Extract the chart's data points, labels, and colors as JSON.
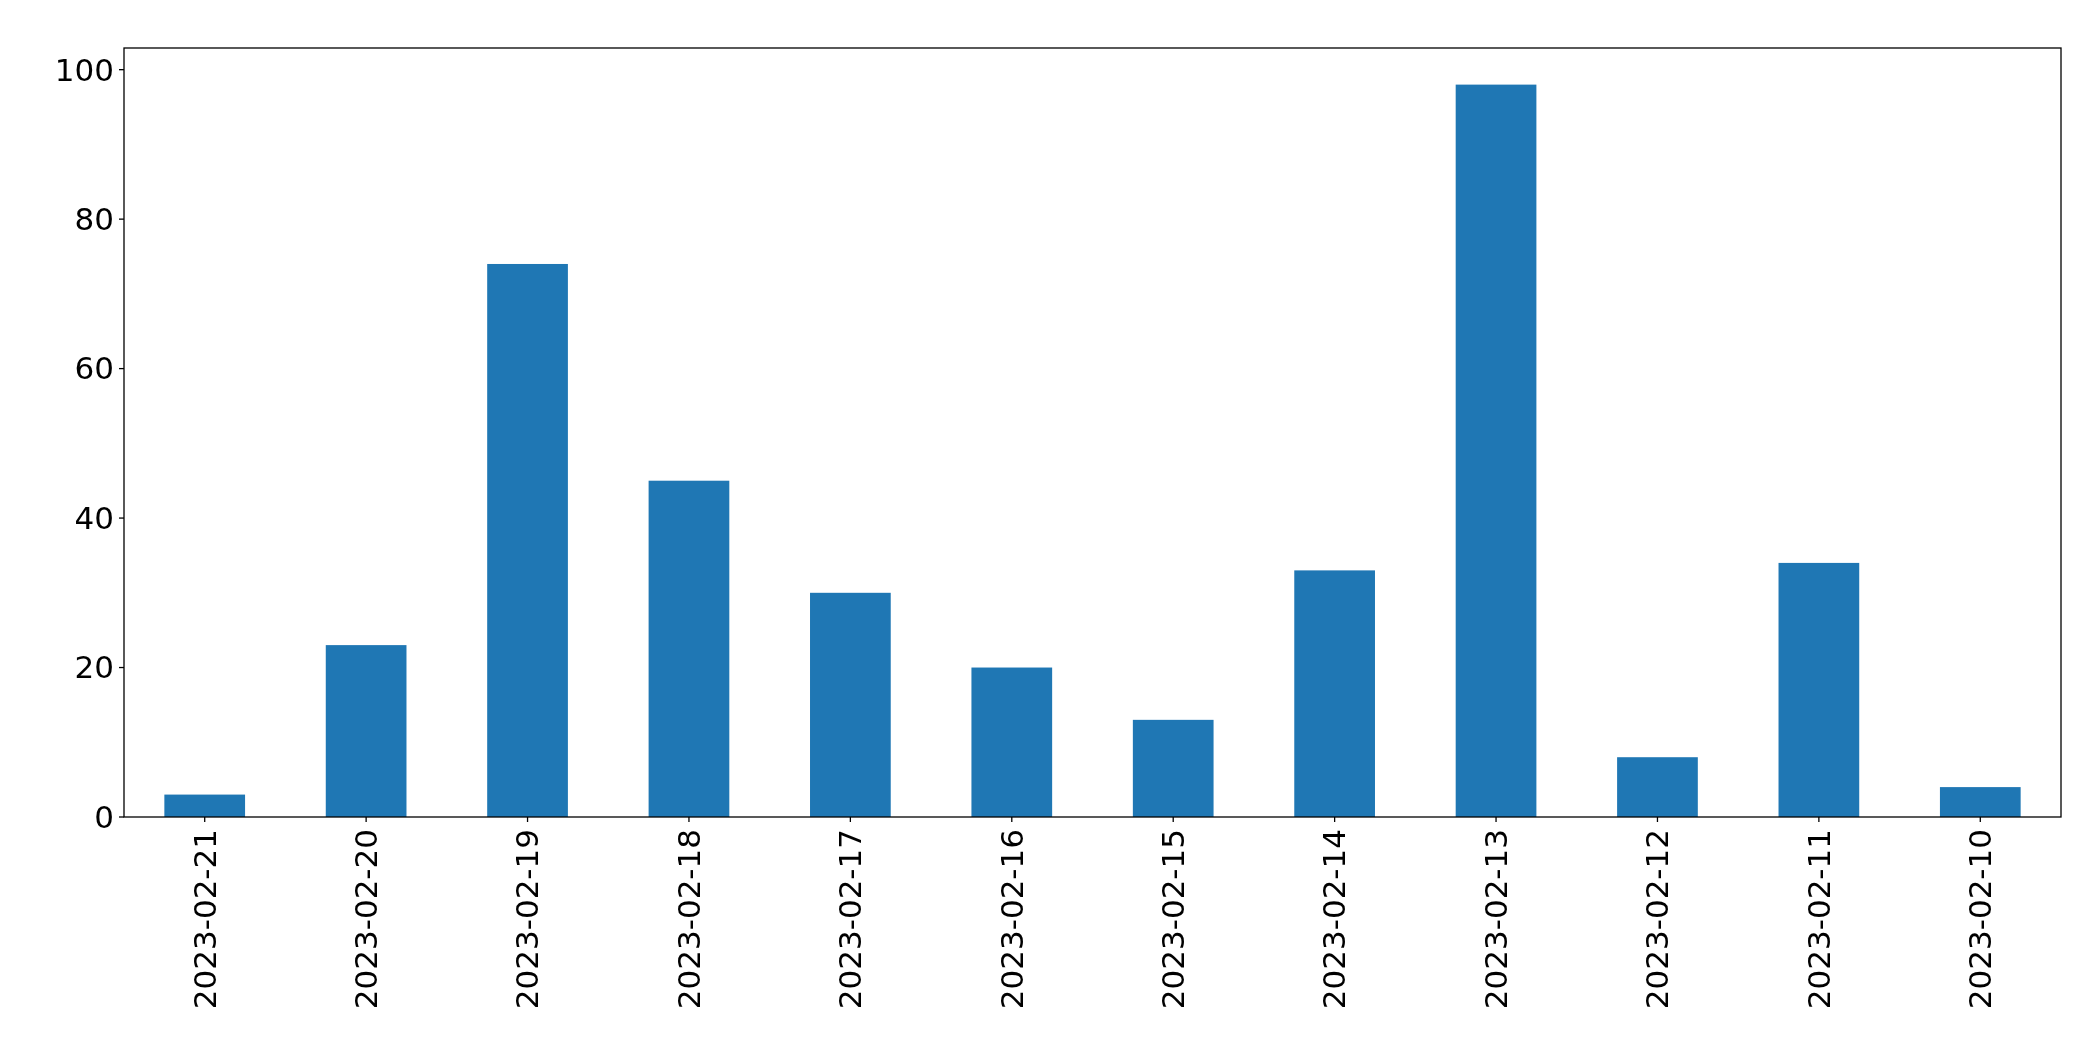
{
  "chart_data": {
    "type": "bar",
    "categories": [
      "2023-02-21",
      "2023-02-20",
      "2023-02-19",
      "2023-02-18",
      "2023-02-17",
      "2023-02-16",
      "2023-02-15",
      "2023-02-14",
      "2023-02-13",
      "2023-02-12",
      "2023-02-11",
      "2023-02-10"
    ],
    "values": [
      3,
      23,
      74,
      45,
      30,
      20,
      13,
      33,
      98,
      8,
      34,
      4
    ],
    "color": "#1f77b4",
    "ylim": [
      0,
      102.9
    ],
    "yticks": [
      0,
      20,
      40,
      60,
      80,
      100
    ]
  }
}
